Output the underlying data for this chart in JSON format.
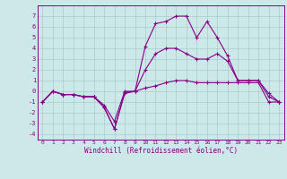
{
  "xlabel": "Windchill (Refroidissement éolien,°C)",
  "x_ticks": [
    0,
    1,
    2,
    3,
    4,
    5,
    6,
    7,
    8,
    9,
    10,
    11,
    12,
    13,
    14,
    15,
    16,
    17,
    18,
    19,
    20,
    21,
    22,
    23
  ],
  "y_ticks": [
    -4,
    -3,
    -2,
    -1,
    0,
    1,
    2,
    3,
    4,
    5,
    6,
    7
  ],
  "ylim": [
    -4.5,
    8.0
  ],
  "xlim": [
    -0.5,
    23.5
  ],
  "bg_color": "#cce8e8",
  "line_color": "#880088",
  "grid_color": "#aacccc",
  "series": [
    [
      -1.0,
      0.0,
      -0.3,
      -0.3,
      -0.5,
      -0.5,
      -1.3,
      -2.8,
      0.0,
      0.0,
      0.3,
      0.5,
      0.8,
      1.0,
      1.0,
      0.8,
      0.8,
      0.8,
      0.8,
      0.8,
      0.8,
      0.8,
      -1.0,
      -1.0
    ],
    [
      -1.0,
      0.0,
      -0.3,
      -0.3,
      -0.5,
      -0.5,
      -1.5,
      -3.5,
      -0.2,
      0.0,
      2.0,
      3.5,
      4.0,
      4.0,
      3.5,
      3.0,
      3.0,
      3.5,
      2.8,
      1.0,
      1.0,
      1.0,
      -0.5,
      -1.0
    ],
    [
      -1.0,
      0.0,
      -0.3,
      -0.3,
      -0.5,
      -0.5,
      -1.5,
      -3.5,
      -0.1,
      0.0,
      4.2,
      6.3,
      6.5,
      7.0,
      7.0,
      5.0,
      6.5,
      5.0,
      3.3,
      1.0,
      1.0,
      1.0,
      -0.2,
      -1.0
    ]
  ],
  "figsize": [
    3.2,
    2.0
  ],
  "dpi": 100
}
